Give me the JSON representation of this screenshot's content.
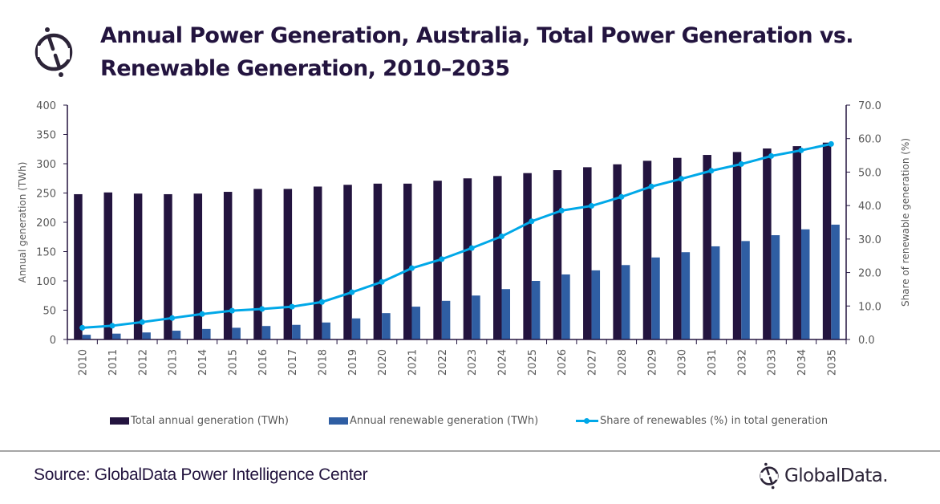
{
  "header": {
    "logo_icon": "globaldata-mark-icon",
    "title_line1": "Annual Power Generation, Australia, Total Power Generation vs.",
    "title_line2": "Renewable Generation, 2010–2035"
  },
  "colors": {
    "title": "#23143f",
    "total_bar": "#23143f",
    "renewable_bar": "#2f5ea3",
    "share_line": "#00a8e8",
    "axis": "#23143f",
    "tick_text": "#595959"
  },
  "chart_data": {
    "type": "bar",
    "title": "Annual Power Generation, Australia, Total Power Generation vs. Renewable Generation, 2010–2035",
    "categories": [
      "2010",
      "2011",
      "2012",
      "2013",
      "2014",
      "2015",
      "2016",
      "2017",
      "2018",
      "2019",
      "2020",
      "2021",
      "2022",
      "2023",
      "2024",
      "2025",
      "2026",
      "2027",
      "2028",
      "2029",
      "2030",
      "2031",
      "2032",
      "2033",
      "2034",
      "2035"
    ],
    "series": [
      {
        "name": "Total annual generation (TWh)",
        "type": "bar",
        "axis": "left",
        "values": [
          248,
          251,
          249,
          248,
          249,
          252,
          257,
          257,
          261,
          264,
          266,
          266,
          271,
          275,
          279,
          284,
          289,
          294,
          299,
          305,
          310,
          315,
          320,
          326,
          330,
          336
        ]
      },
      {
        "name": "Annual renewable generation (TWh)",
        "type": "bar",
        "axis": "left",
        "values": [
          8,
          10,
          12,
          15,
          18,
          20,
          23,
          25,
          29,
          36,
          45,
          56,
          66,
          75,
          86,
          100,
          111,
          118,
          127,
          140,
          149,
          159,
          168,
          178,
          188,
          196
        ]
      },
      {
        "name": "Share of renewables (%) in total generation",
        "type": "line",
        "axis": "right",
        "values": [
          3.5,
          4.1,
          5.2,
          6.4,
          7.6,
          8.6,
          9.1,
          9.8,
          11.2,
          14.1,
          17.2,
          21.3,
          24.0,
          27.3,
          30.8,
          35.3,
          38.5,
          39.9,
          42.6,
          45.7,
          48.0,
          50.4,
          52.4,
          54.8,
          56.5,
          58.4
        ]
      }
    ],
    "ylabel": "Annual generation (TWh)",
    "ylim": [
      0,
      400
    ],
    "yticks": [
      "0",
      "50",
      "100",
      "150",
      "200",
      "250",
      "300",
      "350",
      "400"
    ],
    "y2label": "Share of renewable generation (%)",
    "y2lim": [
      0,
      70
    ],
    "y2ticks": [
      "0.0",
      "10.0",
      "20.0",
      "30.0",
      "40.0",
      "50.0",
      "60.0",
      "70.0"
    ],
    "xlabel": "",
    "grid": false,
    "legend_position": "bottom"
  },
  "legend": {
    "total_label": "Total annual generation (TWh)",
    "renewable_label": "Annual renewable generation (TWh)",
    "share_label": "Share of renewables (%) in total generation"
  },
  "footer": {
    "source": "Source: GlobalData Power Intelligence Center",
    "brand_name": "GlobalData.",
    "brand_icon": "globaldata-mark-icon"
  }
}
